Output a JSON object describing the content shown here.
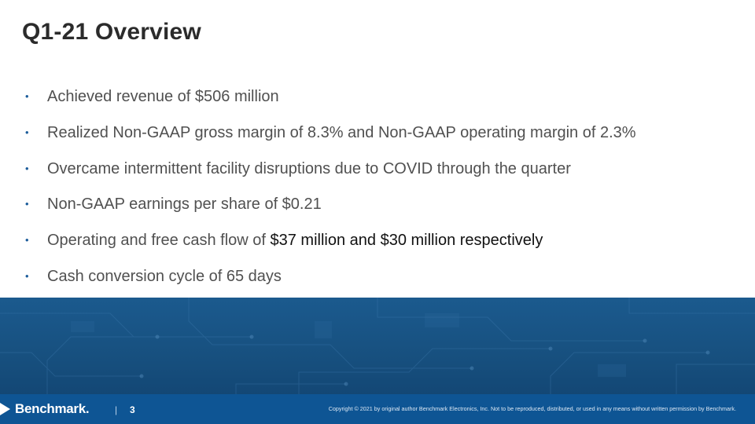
{
  "slide": {
    "title": "Q1-21 Overview",
    "bullets": [
      {
        "text": "Achieved revenue of $506 million"
      },
      {
        "text": "Realized Non-GAAP gross margin of 8.3% and Non-GAAP operating margin of 2.3%"
      },
      {
        "text": "Overcame intermittent facility disruptions due to COVID through the quarter"
      },
      {
        "text": "Non-GAAP earnings per share of $0.21"
      },
      {
        "text": "Operating and free cash flow of ",
        "emphasis": "$37 million and $30 million respectively"
      },
      {
        "text": "Cash conversion cycle of 65 days"
      }
    ],
    "bullet_glyph": "•"
  },
  "footer": {
    "logo_text": "Benchmark.",
    "separator": "|",
    "page_number": "3",
    "copyright": "Copyright © 2021 by original author Benchmark Electronics, Inc. Not to be reproduced, distributed, or used in any means without written permission by Benchmark."
  },
  "colors": {
    "title": "#2b2b2b",
    "body_text": "#505050",
    "bullet": "#1d5d9b",
    "band": "#17507f",
    "footer": "#0e5594"
  }
}
